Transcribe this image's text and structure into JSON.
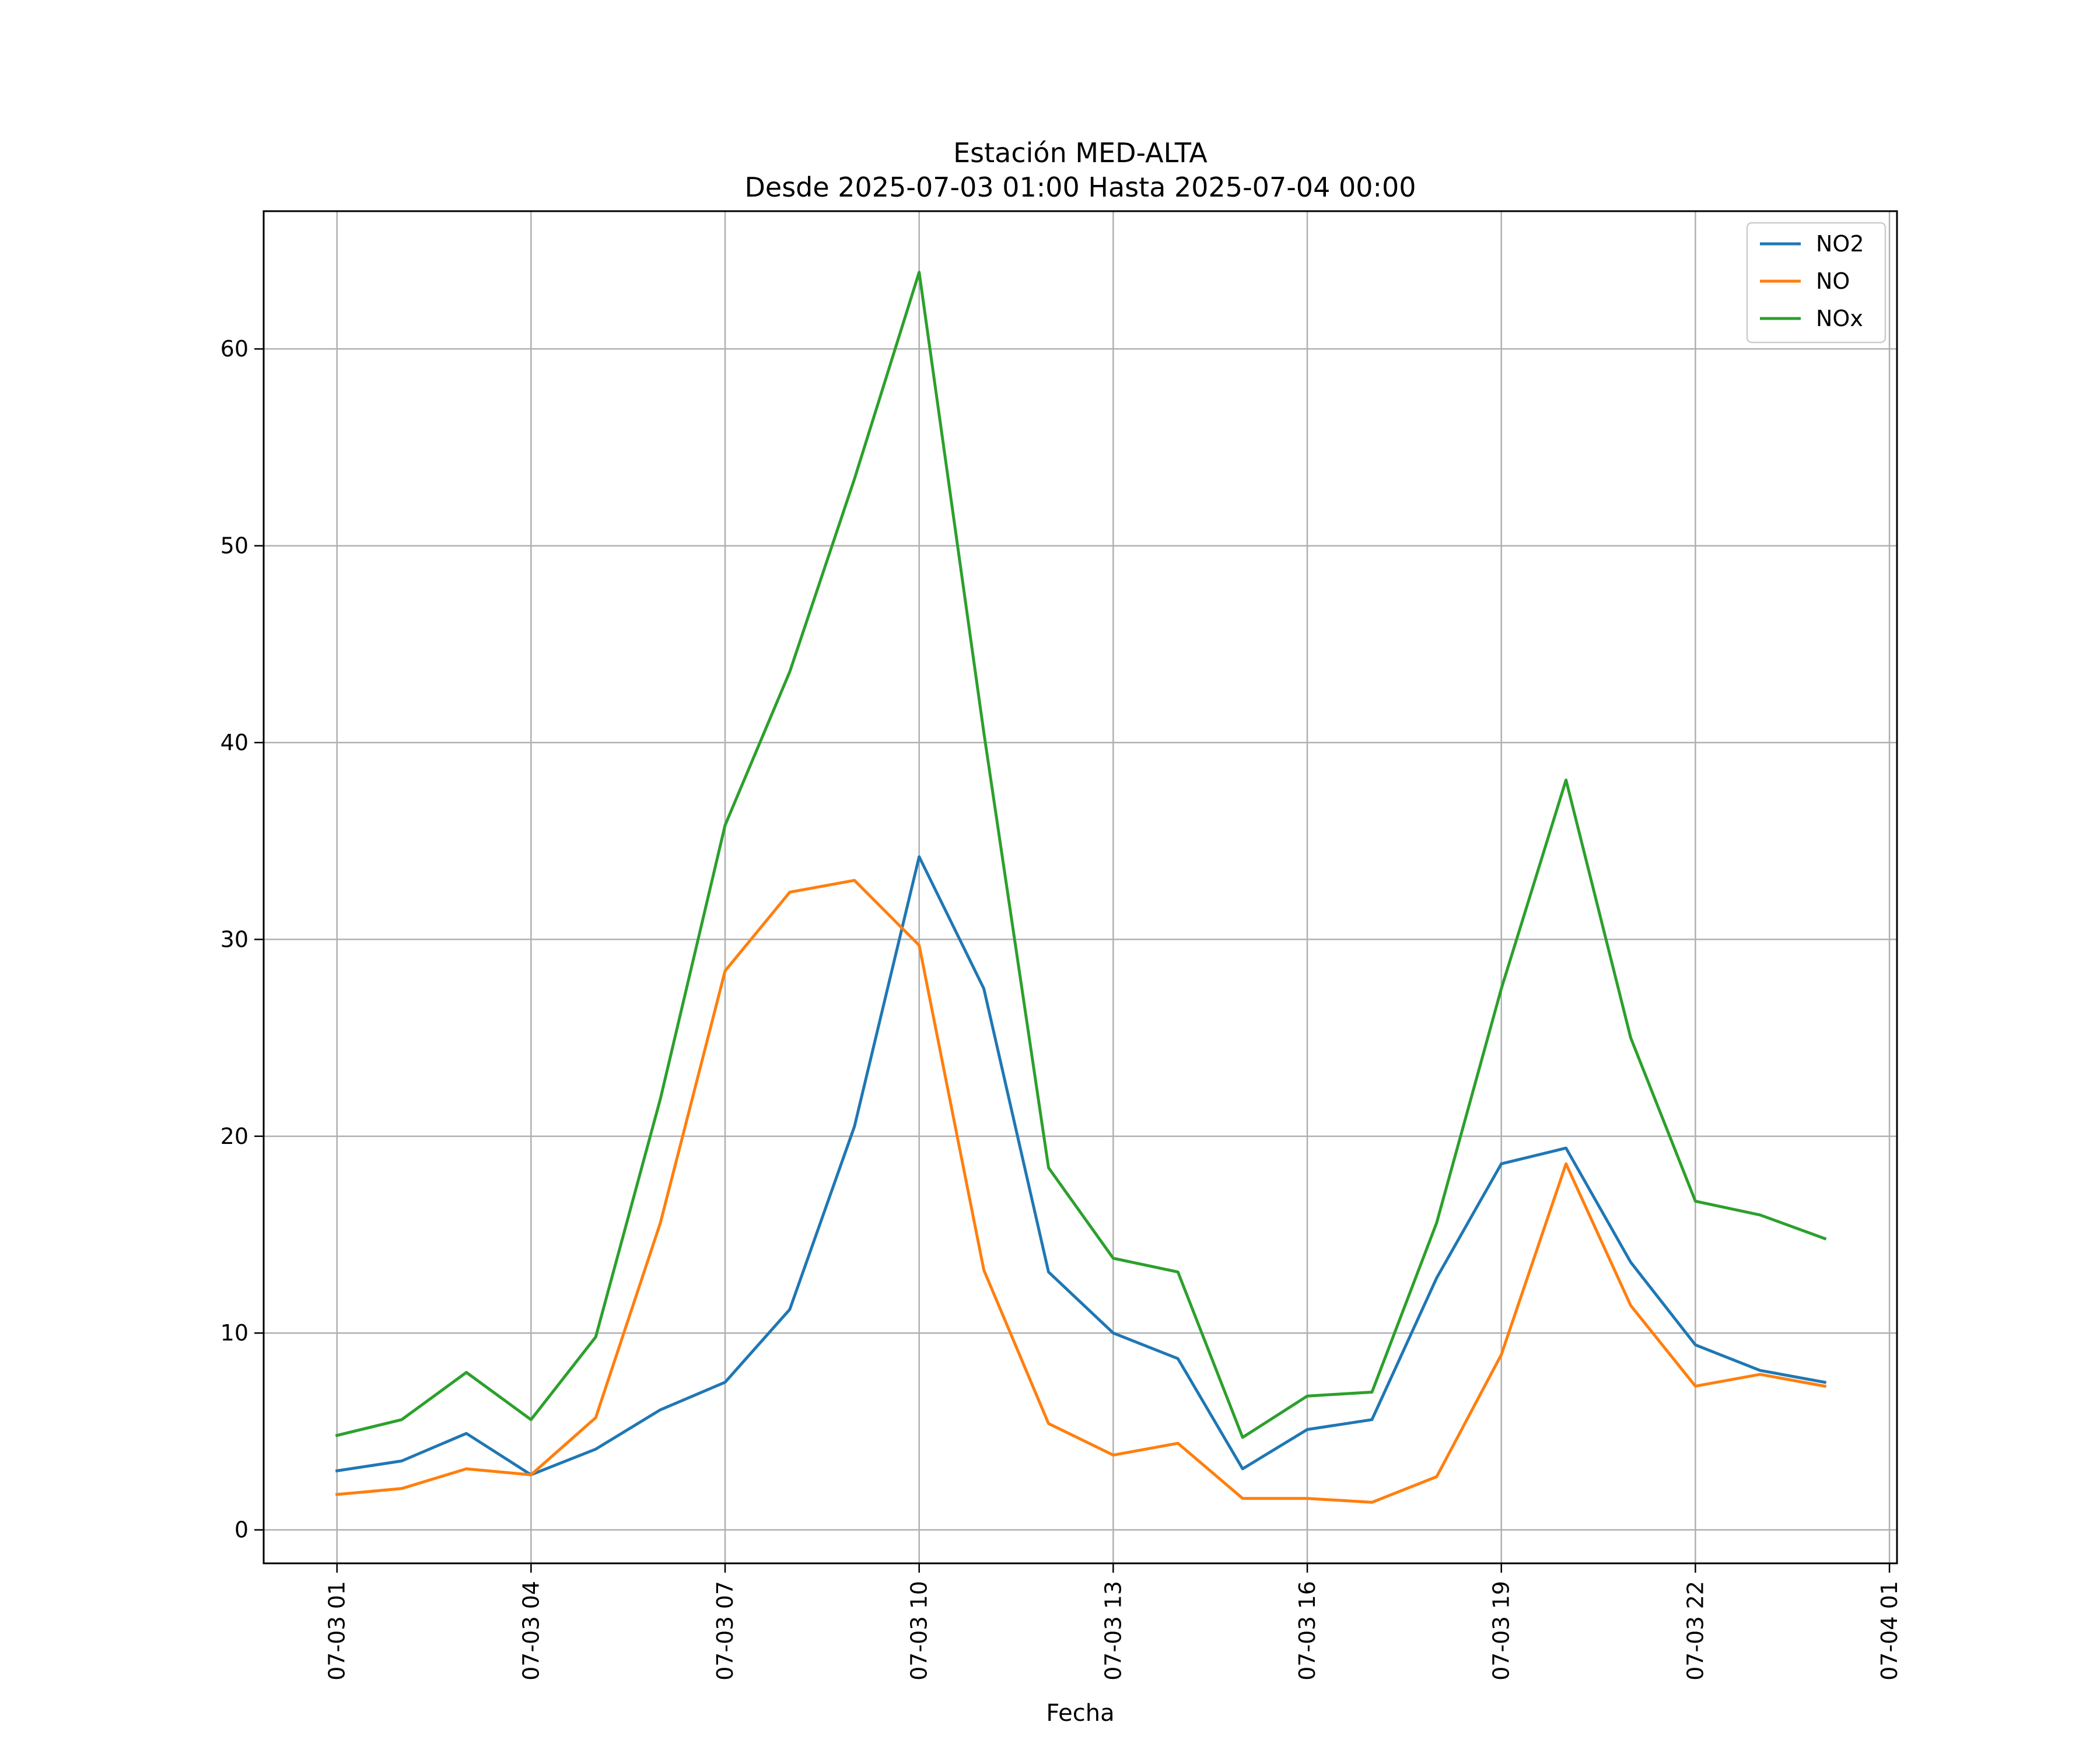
{
  "chart_data": {
    "type": "line",
    "title": "Estación MED-ALTA",
    "subtitle": "Desde 2025-07-03 01:00 Hasta 2025-07-04 00:00",
    "xlabel": "Fecha",
    "ylabel": "",
    "x": [
      "2025-07-03 01:00",
      "2025-07-03 02:00",
      "2025-07-03 03:00",
      "2025-07-03 04:00",
      "2025-07-03 05:00",
      "2025-07-03 06:00",
      "2025-07-03 07:00",
      "2025-07-03 08:00",
      "2025-07-03 09:00",
      "2025-07-03 10:00",
      "2025-07-03 11:00",
      "2025-07-03 12:00",
      "2025-07-03 13:00",
      "2025-07-03 14:00",
      "2025-07-03 15:00",
      "2025-07-03 16:00",
      "2025-07-03 17:00",
      "2025-07-03 18:00",
      "2025-07-03 19:00",
      "2025-07-03 20:00",
      "2025-07-03 21:00",
      "2025-07-03 22:00",
      "2025-07-03 23:00",
      "2025-07-04 00:00"
    ],
    "x_ticks": [
      "2025-07-03 01:00",
      "2025-07-03 04:00",
      "2025-07-03 07:00",
      "2025-07-03 10:00",
      "2025-07-03 13:00",
      "2025-07-03 16:00",
      "2025-07-03 19:00",
      "2025-07-03 22:00",
      "2025-07-04 01:00"
    ],
    "x_tick_labels": [
      "07-03 01",
      "07-03 04",
      "07-03 07",
      "07-03 10",
      "07-03 13",
      "07-03 16",
      "07-03 19",
      "07-03 22",
      "07-04 01"
    ],
    "xlim": [
      "2025-07-02 23:52",
      "2025-07-04 01:07"
    ],
    "ylim": [
      -1.7,
      67
    ],
    "y_ticks": [
      0,
      10,
      20,
      30,
      40,
      50,
      60
    ],
    "grid": true,
    "legend_position": "top-right",
    "series": [
      {
        "name": "NO2",
        "color": "#1f77b4",
        "values": [
          3.0,
          3.5,
          4.9,
          2.8,
          4.1,
          6.1,
          7.5,
          11.2,
          20.5,
          34.2,
          27.5,
          13.1,
          10.0,
          8.7,
          3.1,
          5.1,
          5.6,
          12.8,
          18.6,
          19.4,
          13.6,
          9.4,
          8.1,
          7.5
        ]
      },
      {
        "name": "NO",
        "color": "#ff7f0e",
        "values": [
          1.8,
          2.1,
          3.1,
          2.8,
          5.7,
          15.6,
          28.4,
          32.4,
          33.0,
          29.7,
          13.2,
          5.4,
          3.8,
          4.4,
          1.6,
          1.6,
          1.4,
          2.7,
          8.9,
          18.6,
          11.4,
          7.3,
          7.9,
          7.3
        ]
      },
      {
        "name": "NOx",
        "color": "#2ca02c",
        "values": [
          4.8,
          5.6,
          8.0,
          5.6,
          9.8,
          21.9,
          35.8,
          43.6,
          53.4,
          63.9,
          40.5,
          18.4,
          13.8,
          13.1,
          4.7,
          6.8,
          7.0,
          15.6,
          27.5,
          38.1,
          25.0,
          16.7,
          16.0,
          14.8
        ]
      }
    ]
  }
}
